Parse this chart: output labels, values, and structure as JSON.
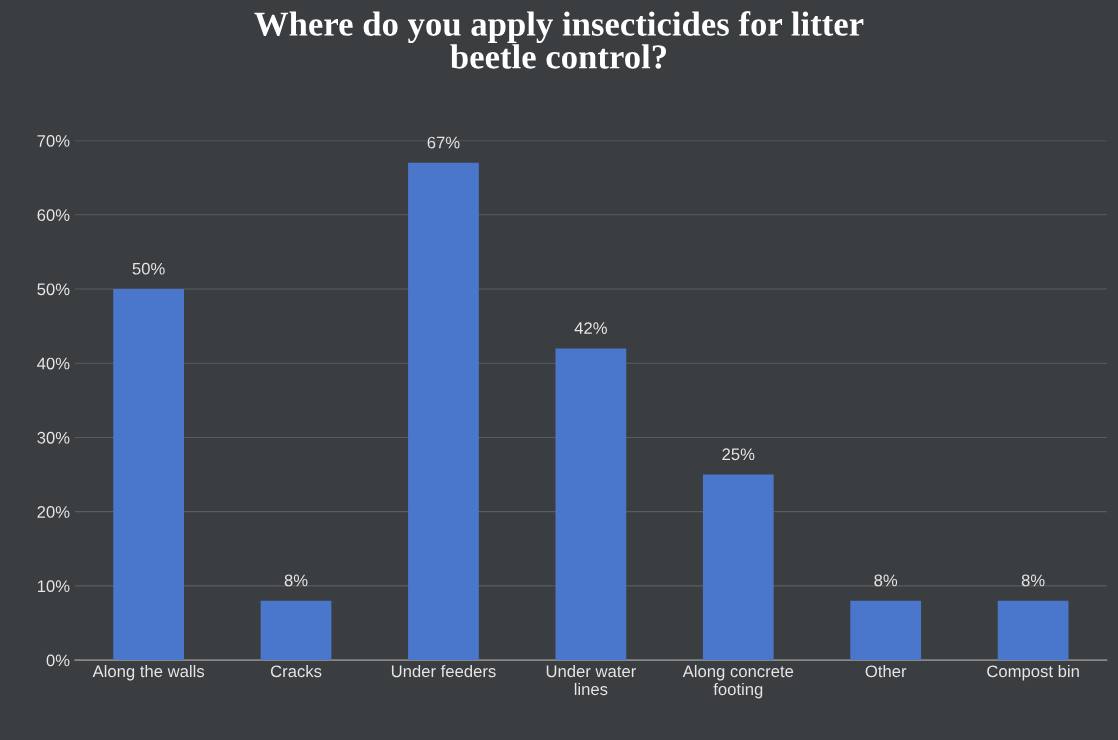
{
  "chart_data": {
    "type": "bar",
    "title": "Where do you apply insecticides for litter\nbeetle control?",
    "categories": [
      "Along the walls",
      "Cracks",
      "Under feeders",
      "Under water\nlines",
      "Along concrete\nfooting",
      "Other",
      "Compost bin"
    ],
    "values": [
      50,
      8,
      67,
      42,
      25,
      8,
      8
    ],
    "value_labels": [
      "50%",
      "8%",
      "67%",
      "42%",
      "25%",
      "8%",
      "8%"
    ],
    "color": "#4a76cc",
    "ylim": [
      0,
      70
    ],
    "yticks": [
      {
        "value": 0,
        "label": "0%"
      },
      {
        "value": 10,
        "label": "10%"
      },
      {
        "value": 20,
        "label": "20%"
      },
      {
        "value": 30,
        "label": "30%"
      },
      {
        "value": 40,
        "label": "40%"
      },
      {
        "value": 50,
        "label": "50%"
      },
      {
        "value": 60,
        "label": "60%"
      },
      {
        "value": 70,
        "label": "70%"
      }
    ],
    "grid": "y"
  }
}
